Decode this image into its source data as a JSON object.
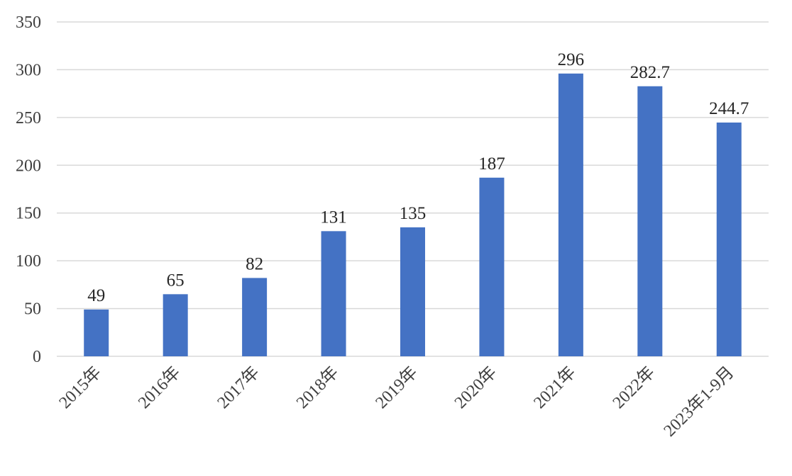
{
  "chart_data": {
    "type": "bar",
    "categories": [
      "2015年",
      "2016年",
      "2017年",
      "2018年",
      "2019年",
      "2020年",
      "2021年",
      "2022年",
      "2023年1-9月"
    ],
    "values": [
      49,
      65,
      82,
      131,
      135,
      187,
      296,
      282.7,
      244.7
    ],
    "color": "#4472c4",
    "ylim": [
      0,
      350
    ],
    "yticks": [
      0,
      50,
      100,
      150,
      200,
      250,
      300,
      350
    ],
    "grid": true
  }
}
